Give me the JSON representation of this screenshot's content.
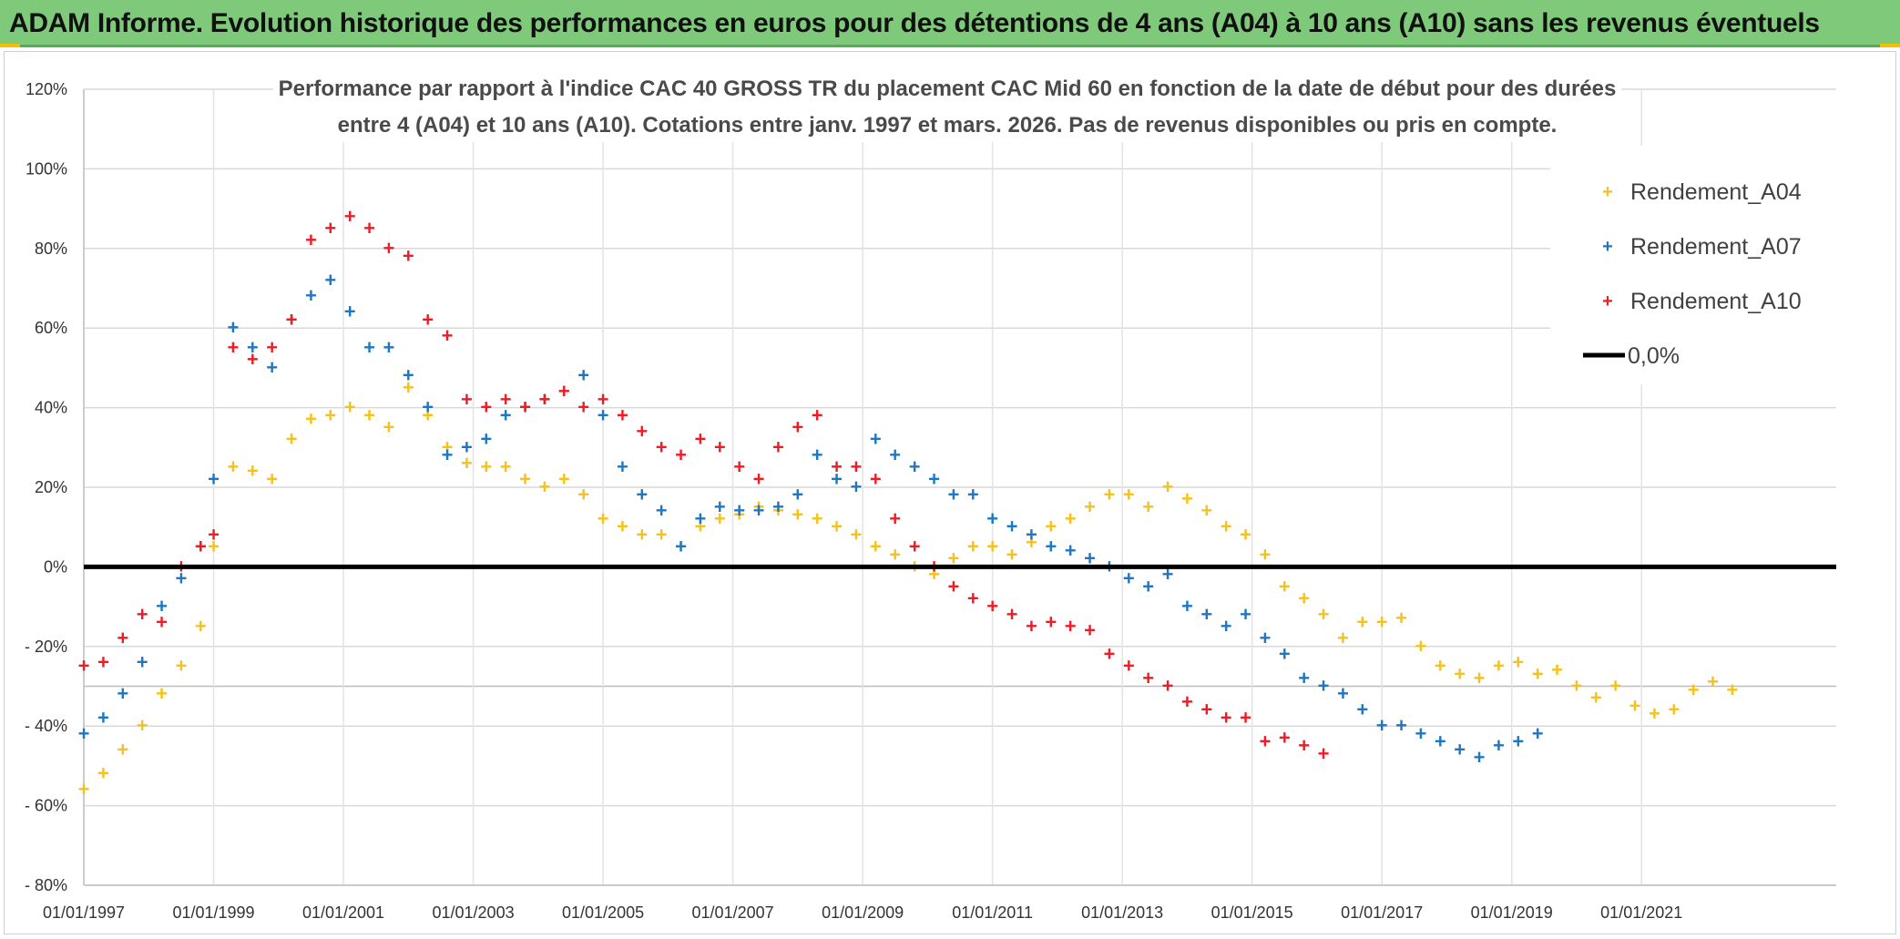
{
  "banner": {
    "title": "ADAM Informe. Evolution historique des performances en euros pour des détentions de 4 ans (A04) à 10 ans (A10) sans les revenus éventuels"
  },
  "colors": {
    "banner_bg": "#7fc97a",
    "A04": "#f5c21b",
    "A07": "#1f77c2",
    "A10": "#ee1c25",
    "zero_line": "#000000"
  },
  "chart_data": {
    "type": "scatter",
    "title_lines": [
      "Performance par rapport à l'indice CAC 40 GROSS TR  du placement CAC Mid 60 en fonction de la date de début pour des durées",
      "entre 4 (A04) et 10 ans (A10). Cotations entre janv. 1997 et mars. 2026. Pas de revenus disponibles ou pris en compte."
    ],
    "xlabel": "",
    "ylabel": "",
    "xlim": [
      1997.0,
      2024.0
    ],
    "ylim": [
      -80,
      120
    ],
    "x_ticks": [
      {
        "value": 1997,
        "label": "01/01/1997"
      },
      {
        "value": 1999,
        "label": "01/01/1999"
      },
      {
        "value": 2001,
        "label": "01/01/2001"
      },
      {
        "value": 2003,
        "label": "01/01/2003"
      },
      {
        "value": 2005,
        "label": "01/01/2005"
      },
      {
        "value": 2007,
        "label": "01/01/2007"
      },
      {
        "value": 2009,
        "label": "01/01/2009"
      },
      {
        "value": 2011,
        "label": "01/01/2011"
      },
      {
        "value": 2013,
        "label": "01/01/2013"
      },
      {
        "value": 2015,
        "label": "01/01/2015"
      },
      {
        "value": 2017,
        "label": "01/01/2017"
      },
      {
        "value": 2019,
        "label": "01/01/2019"
      },
      {
        "value": 2021,
        "label": "01/01/2021"
      }
    ],
    "y_ticks": [
      {
        "value": 120,
        "label": "120%"
      },
      {
        "value": 100,
        "label": "100%"
      },
      {
        "value": 80,
        "label": "80%"
      },
      {
        "value": 60,
        "label": "60%"
      },
      {
        "value": 40,
        "label": "40%"
      },
      {
        "value": 20,
        "label": "20%"
      },
      {
        "value": 0,
        "label": "0%"
      },
      {
        "value": -20,
        "label": "- 20%"
      },
      {
        "value": -40,
        "label": "- 40%"
      },
      {
        "value": -60,
        "label": "- 60%"
      },
      {
        "value": -80,
        "label": "- 80%"
      }
    ],
    "legend": {
      "placement": "top-right",
      "entries": [
        "Rendement_A04",
        "Rendement_A07",
        "Rendement_A10",
        "0,0%"
      ]
    },
    "zero_line": {
      "name": "0,0%",
      "value": 0
    },
    "series": [
      {
        "name": "Rendement_A04",
        "x": [
          1997.0,
          1997.3,
          1997.6,
          1997.9,
          1998.2,
          1998.5,
          1998.8,
          1999.0,
          1999.3,
          1999.6,
          1999.9,
          2000.2,
          2000.5,
          2000.8,
          2001.1,
          2001.4,
          2001.7,
          2002.0,
          2002.3,
          2002.6,
          2002.9,
          2003.2,
          2003.5,
          2003.8,
          2004.1,
          2004.4,
          2004.7,
          2005.0,
          2005.3,
          2005.6,
          2005.9,
          2006.2,
          2006.5,
          2006.8,
          2007.1,
          2007.4,
          2007.7,
          2008.0,
          2008.3,
          2008.6,
          2008.9,
          2009.2,
          2009.5,
          2009.8,
          2010.1,
          2010.4,
          2010.7,
          2011.0,
          2011.3,
          2011.6,
          2011.9,
          2012.2,
          2012.5,
          2012.8,
          2013.1,
          2013.4,
          2013.7,
          2014.0,
          2014.3,
          2014.6,
          2014.9,
          2015.2,
          2015.5,
          2015.8,
          2016.1,
          2016.4,
          2016.7,
          2017.0,
          2017.3,
          2017.6,
          2017.9,
          2018.2,
          2018.5,
          2018.8,
          2019.1,
          2019.4,
          2019.7,
          2020.0,
          2020.3,
          2020.6,
          2020.9,
          2021.2,
          2021.5,
          2021.8,
          2022.1,
          2022.4
        ],
        "y": [
          -56,
          -52,
          -46,
          -40,
          -32,
          -25,
          -15,
          5,
          25,
          24,
          22,
          32,
          37,
          38,
          40,
          38,
          35,
          45,
          38,
          30,
          26,
          25,
          25,
          22,
          20,
          22,
          18,
          12,
          10,
          8,
          8,
          5,
          10,
          12,
          13,
          15,
          14,
          13,
          12,
          10,
          8,
          5,
          3,
          0,
          -2,
          2,
          5,
          5,
          3,
          6,
          10,
          12,
          15,
          18,
          18,
          15,
          20,
          17,
          14,
          10,
          8,
          3,
          -5,
          -8,
          -12,
          -18,
          -14,
          -14,
          -13,
          -20,
          -25,
          -27,
          -28,
          -25,
          -24,
          -27,
          -26,
          -30,
          -33,
          -30,
          -35,
          -37,
          -36,
          -31,
          -29,
          -31
        ]
      },
      {
        "name": "Rendement_A07",
        "x": [
          1997.0,
          1997.3,
          1997.6,
          1997.9,
          1998.2,
          1998.5,
          1998.8,
          1999.0,
          1999.3,
          1999.6,
          1999.9,
          2000.2,
          2000.5,
          2000.8,
          2001.1,
          2001.4,
          2001.7,
          2002.0,
          2002.3,
          2002.6,
          2002.9,
          2003.2,
          2003.5,
          2003.8,
          2004.1,
          2004.4,
          2004.7,
          2005.0,
          2005.3,
          2005.6,
          2005.9,
          2006.2,
          2006.5,
          2006.8,
          2007.1,
          2007.4,
          2007.7,
          2008.0,
          2008.3,
          2008.6,
          2008.9,
          2009.2,
          2009.5,
          2009.8,
          2010.1,
          2010.4,
          2010.7,
          2011.0,
          2011.3,
          2011.6,
          2011.9,
          2012.2,
          2012.5,
          2012.8,
          2013.1,
          2013.4,
          2013.7,
          2014.0,
          2014.3,
          2014.6,
          2014.9,
          2015.2,
          2015.5,
          2015.8,
          2016.1,
          2016.4,
          2016.7,
          2017.0,
          2017.3,
          2017.6,
          2017.9,
          2018.2,
          2018.5,
          2018.8,
          2019.1,
          2019.4
        ],
        "y": [
          -42,
          -38,
          -32,
          -24,
          -10,
          -3,
          5,
          22,
          60,
          55,
          50,
          62,
          68,
          72,
          64,
          55,
          55,
          48,
          40,
          28,
          30,
          32,
          38,
          40,
          42,
          44,
          48,
          38,
          25,
          18,
          14,
          5,
          12,
          15,
          14,
          14,
          15,
          18,
          28,
          22,
          20,
          32,
          28,
          25,
          22,
          18,
          18,
          12,
          10,
          8,
          5,
          4,
          2,
          0,
          -3,
          -5,
          -2,
          -10,
          -12,
          -15,
          -12,
          -18,
          -22,
          -28,
          -30,
          -32,
          -36,
          -40,
          -40,
          -42,
          -44,
          -46,
          -48,
          -45,
          -44,
          -42
        ]
      },
      {
        "name": "Rendement_A10",
        "x": [
          1997.0,
          1997.3,
          1997.6,
          1997.9,
          1998.2,
          1998.5,
          1998.8,
          1999.0,
          1999.3,
          1999.6,
          1999.9,
          2000.2,
          2000.5,
          2000.8,
          2001.1,
          2001.4,
          2001.7,
          2002.0,
          2002.3,
          2002.6,
          2002.9,
          2003.2,
          2003.5,
          2003.8,
          2004.1,
          2004.4,
          2004.7,
          2005.0,
          2005.3,
          2005.6,
          2005.9,
          2006.2,
          2006.5,
          2006.8,
          2007.1,
          2007.4,
          2007.7,
          2008.0,
          2008.3,
          2008.6,
          2008.9,
          2009.2,
          2009.5,
          2009.8,
          2010.1,
          2010.4,
          2010.7,
          2011.0,
          2011.3,
          2011.6,
          2011.9,
          2012.2,
          2012.5,
          2012.8,
          2013.1,
          2013.4,
          2013.7,
          2014.0,
          2014.3,
          2014.6,
          2014.9,
          2015.2,
          2015.5,
          2015.8,
          2016.1
        ],
        "y": [
          -25,
          -24,
          -18,
          -12,
          -14,
          0,
          5,
          8,
          55,
          52,
          55,
          62,
          82,
          85,
          88,
          85,
          80,
          78,
          62,
          58,
          42,
          40,
          42,
          40,
          42,
          44,
          40,
          42,
          38,
          34,
          30,
          28,
          32,
          30,
          25,
          22,
          30,
          35,
          38,
          25,
          25,
          22,
          12,
          5,
          0,
          -5,
          -8,
          -10,
          -12,
          -15,
          -14,
          -15,
          -16,
          -22,
          -25,
          -28,
          -30,
          -34,
          -36,
          -38,
          -38,
          -44,
          -43,
          -45,
          -47
        ]
      }
    ]
  }
}
